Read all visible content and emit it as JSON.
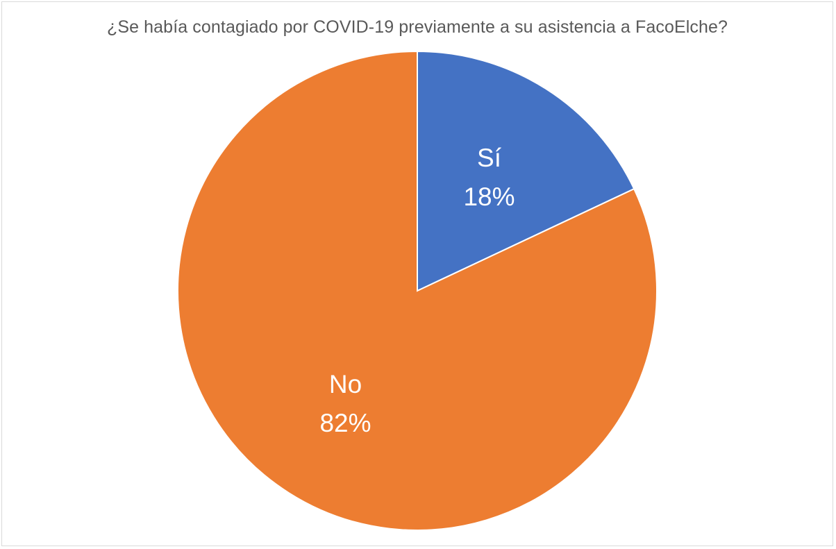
{
  "chart_data": {
    "type": "pie",
    "title": "¿Se había contagiado por COVID-19 previamente a su asistencia a FacoElche?",
    "slices": [
      {
        "label": "Sí",
        "value": 18,
        "value_label": "18%",
        "color": "#4472C4"
      },
      {
        "label": "No",
        "value": 82,
        "value_label": "82%",
        "color": "#ED7D31"
      }
    ],
    "start_angle": "12 o'clock",
    "direction": "clockwise",
    "legend": "none",
    "data_labels": "inside"
  }
}
